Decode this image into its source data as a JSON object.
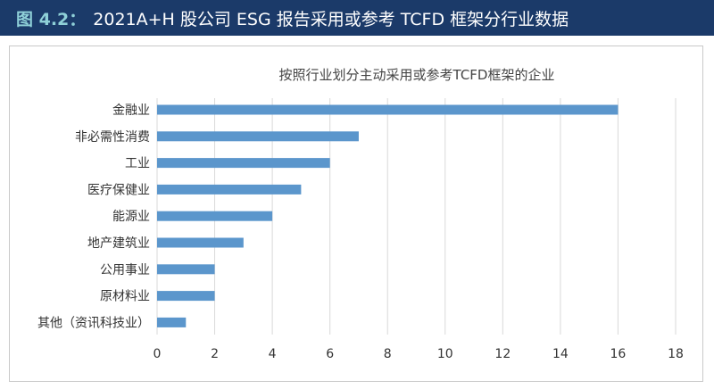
{
  "header": {
    "figure_label": "图 4.2：",
    "title": "2021A+H 股公司 ESG 报告采用或参考 TCFD 框架分行业数据"
  },
  "colors": {
    "header_bg": "#1b3a69",
    "figure_label": "#8fd0d8",
    "bar": "#5b96cc",
    "grid": "#d9d9d9"
  },
  "chart_data": {
    "type": "bar",
    "orientation": "horizontal",
    "title": "按照行业划分主动采用或参考TCFD框架的企业",
    "categories": [
      "金融业",
      "非必需性消费",
      "工业",
      "医疗保健业",
      "能源业",
      "地产建筑业",
      "公用事业",
      "原材料业",
      "其他（资讯科技业）"
    ],
    "values": [
      16,
      7,
      6,
      5,
      4,
      3,
      2,
      2,
      1
    ],
    "xlim": [
      0,
      18
    ],
    "xticks": [
      0,
      2,
      4,
      6,
      8,
      10,
      12,
      14,
      16,
      18
    ],
    "grid": true,
    "legend": "none"
  }
}
